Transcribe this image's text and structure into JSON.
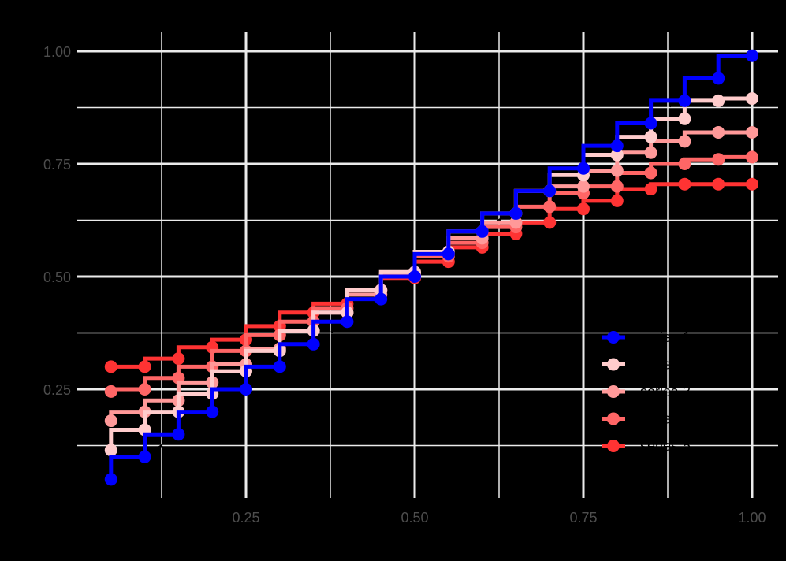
{
  "chart_data": {
    "type": "line",
    "subtype": "step-with-points",
    "title": "",
    "xlabel": "",
    "ylabel": "",
    "xlim": [
      0.03,
      1.02
    ],
    "ylim": [
      0.03,
      1.03
    ],
    "grid": true,
    "background": "#000000",
    "grid_color": "#EBEBEB",
    "x_ticks": [
      {
        "value": 0.25,
        "label": "0.25"
      },
      {
        "value": 0.5,
        "label": "0.50"
      },
      {
        "value": 0.75,
        "label": "0.75"
      },
      {
        "value": 1.0,
        "label": "1.00"
      }
    ],
    "x_minor_ticks": [
      0.125,
      0.375,
      0.625,
      0.875
    ],
    "y_ticks": [
      {
        "value": 0.25,
        "label": "0.25"
      },
      {
        "value": 0.5,
        "label": "0.50"
      },
      {
        "value": 0.75,
        "label": "0.75"
      },
      {
        "value": 1.0,
        "label": "1.00"
      }
    ],
    "y_minor_ticks": [
      0.125,
      0.375,
      0.625,
      0.875
    ],
    "reference_line": {
      "type": "diagonal",
      "color": "#000000",
      "dash": "6,6",
      "from": [
        0.05,
        0.05
      ],
      "to": [
        1.0,
        1.0
      ]
    },
    "legend": {
      "position": "inside-bottom-right",
      "label_color": "#000000"
    },
    "x": [
      0.05,
      0.1,
      0.15,
      0.2,
      0.25,
      0.3,
      0.35,
      0.4,
      0.45,
      0.5,
      0.55,
      0.6,
      0.65,
      0.7,
      0.75,
      0.8,
      0.85,
      0.9,
      0.95,
      1.0
    ],
    "series": [
      {
        "name": "series-1",
        "color": "#0000FF",
        "values": [
          0.05,
          0.1,
          0.15,
          0.2,
          0.25,
          0.3,
          0.35,
          0.4,
          0.45,
          0.5,
          0.55,
          0.6,
          0.64,
          0.69,
          0.74,
          0.79,
          0.84,
          0.89,
          0.94,
          0.99
        ]
      },
      {
        "name": "series-2",
        "color": "#FFCCCC",
        "values": [
          0.115,
          0.16,
          0.2,
          0.24,
          0.29,
          0.335,
          0.38,
          0.42,
          0.47,
          0.51,
          0.555,
          0.6,
          0.64,
          0.69,
          0.725,
          0.77,
          0.81,
          0.85,
          0.89,
          0.895
        ]
      },
      {
        "name": "series-3",
        "color": "#FF9999",
        "values": [
          0.18,
          0.2,
          0.225,
          0.265,
          0.305,
          0.34,
          0.38,
          0.42,
          0.46,
          0.505,
          0.55,
          0.585,
          0.62,
          0.69,
          0.7,
          0.735,
          0.775,
          0.8,
          0.82,
          0.82
        ]
      },
      {
        "name": "series-4",
        "color": "#FF6666",
        "values": [
          0.245,
          0.25,
          0.275,
          0.3,
          0.335,
          0.37,
          0.4,
          0.43,
          0.47,
          0.5,
          0.545,
          0.575,
          0.61,
          0.655,
          0.685,
          0.7,
          0.73,
          0.75,
          0.76,
          0.765
        ]
      },
      {
        "name": "series-5",
        "color": "#FF3333",
        "values": [
          0.3,
          0.3,
          0.318,
          0.343,
          0.36,
          0.39,
          0.42,
          0.44,
          0.47,
          0.497,
          0.533,
          0.565,
          0.595,
          0.62,
          0.65,
          0.668,
          0.694,
          0.705,
          0.705,
          0.705
        ]
      }
    ]
  }
}
